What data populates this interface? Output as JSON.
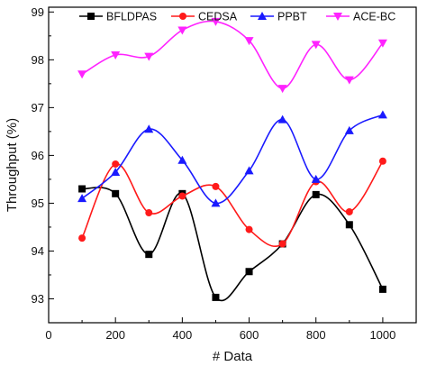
{
  "chart_data": {
    "type": "line",
    "xlabel": "# Data",
    "ylabel": "Throughput (%)",
    "xlim": [
      0,
      1100
    ],
    "ylim": [
      92.5,
      99.1
    ],
    "xticks": [
      0,
      200,
      400,
      600,
      800,
      1000
    ],
    "yticks": [
      93,
      94,
      95,
      96,
      97,
      98,
      99
    ],
    "x": [
      100,
      200,
      300,
      400,
      500,
      600,
      700,
      800,
      900,
      1000
    ],
    "grid": false,
    "legend_position": "top",
    "series": [
      {
        "name": "BFLDPAS",
        "color": "#000000",
        "marker": "square",
        "values": [
          95.3,
          95.2,
          93.93,
          95.2,
          93.03,
          93.57,
          94.15,
          95.18,
          94.55,
          93.2
        ]
      },
      {
        "name": "CEDSA",
        "color": "#ff1a1a",
        "marker": "circle",
        "values": [
          94.27,
          95.82,
          94.8,
          95.15,
          95.35,
          94.45,
          94.15,
          95.45,
          94.82,
          95.88
        ]
      },
      {
        "name": "PPBT",
        "color": "#1a1aff",
        "marker": "triangle-up",
        "values": [
          95.1,
          95.65,
          96.55,
          95.9,
          95.0,
          95.68,
          96.75,
          95.5,
          96.52,
          96.85
        ]
      },
      {
        "name": "ACE-BC",
        "color": "#ff22ff",
        "marker": "triangle-down",
        "values": [
          97.7,
          98.1,
          98.07,
          98.62,
          98.8,
          98.4,
          97.4,
          98.32,
          97.58,
          98.35
        ]
      }
    ]
  }
}
